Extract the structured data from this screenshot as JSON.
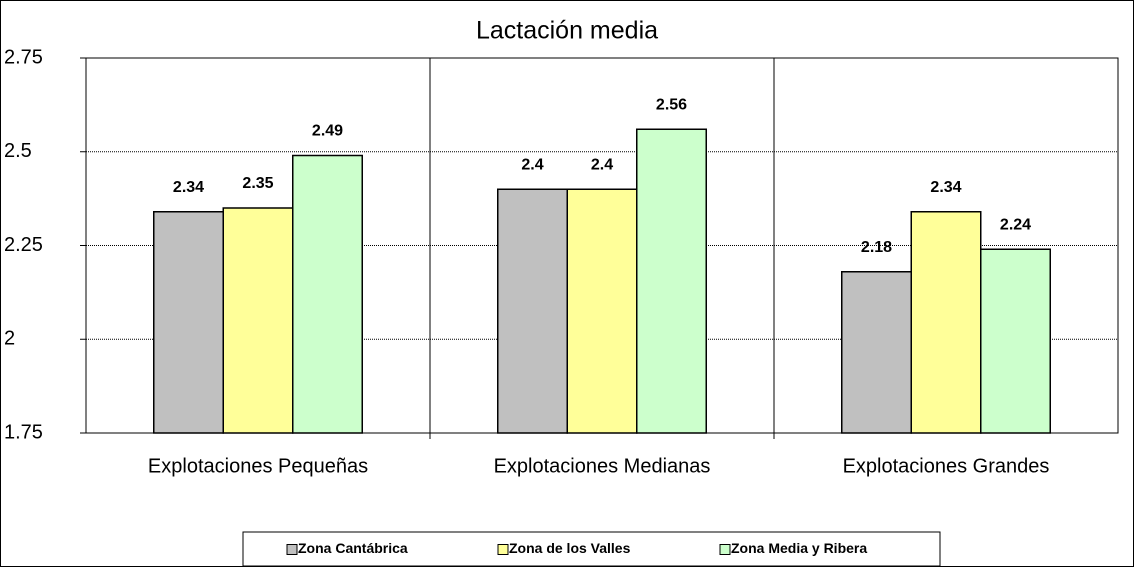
{
  "chart_data": {
    "type": "bar",
    "title": "Lactación media",
    "categories": [
      "Explotaciones Pequeñas",
      "Explotaciones Medianas",
      "Explotaciones Grandes"
    ],
    "series": [
      {
        "name": "Zona Cantábrica",
        "color": "#c0c0c0",
        "values": [
          2.34,
          2.4,
          2.18
        ]
      },
      {
        "name": "Zona de los Valles",
        "color": "#ffff99",
        "values": [
          2.35,
          2.4,
          2.34
        ]
      },
      {
        "name": "Zona Media y Ribera",
        "color": "#ccffcc",
        "values": [
          2.49,
          2.56,
          2.24
        ]
      }
    ],
    "ylim": [
      1.75,
      2.75
    ],
    "yticks": [
      1.75,
      2,
      2.25,
      2.5,
      2.75
    ],
    "grid": true,
    "legend": "bottom"
  }
}
